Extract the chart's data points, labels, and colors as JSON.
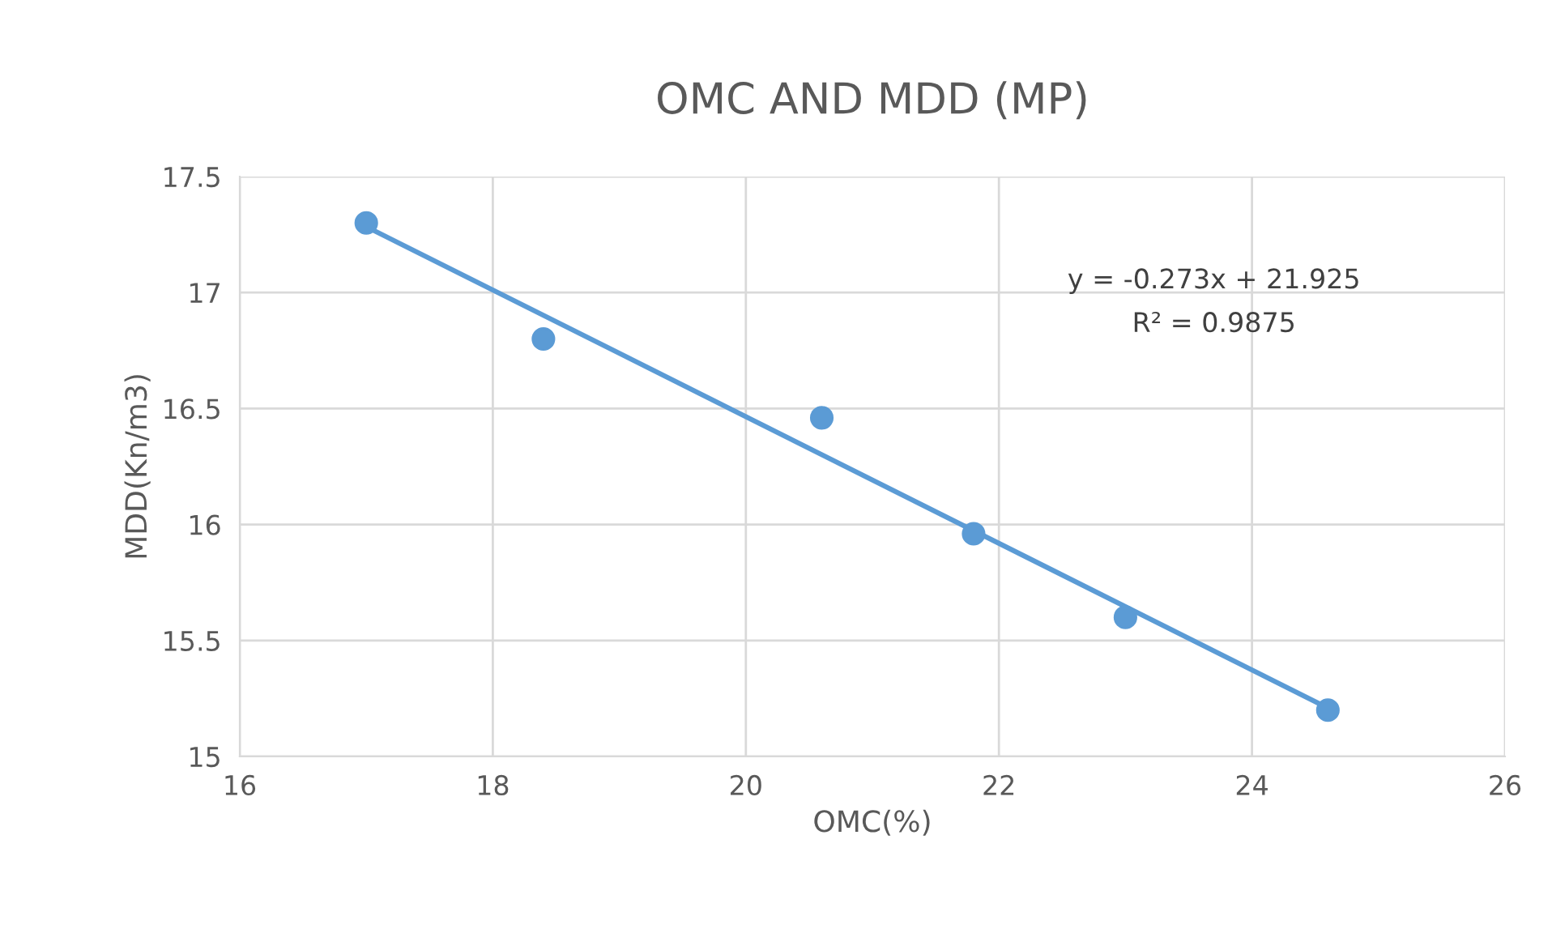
{
  "chart_data": {
    "type": "scatter",
    "title": "OMC AND MDD (MP)",
    "xlabel": "OMC(%)",
    "ylabel": "MDD(Kn/m3)",
    "x": [
      17,
      18.4,
      20.6,
      21.8,
      23.0,
      24.6
    ],
    "series": [
      {
        "color": "#5b9bd5",
        "values": [
          17.3,
          16.8,
          16.46,
          15.96,
          15.6,
          15.2
        ],
        "marker": "circle"
      },
      {
        "type": "line",
        "color": "#5b9bd5",
        "x": [
          17,
          24.6
        ],
        "values": [
          17.284,
          15.209
        ],
        "marker": "none",
        "line_style": "solid"
      }
    ],
    "annotations": [
      "y = -0.273x + 21.925",
      "R² = 0.9875"
    ],
    "xlim": [
      16,
      26
    ],
    "xticks": [
      16,
      18,
      20,
      22,
      24,
      26
    ],
    "ylim": [
      15,
      17.5
    ],
    "yticks": [
      15,
      15.5,
      16,
      16.5,
      17,
      17.5
    ],
    "grid": true,
    "legend": false
  }
}
